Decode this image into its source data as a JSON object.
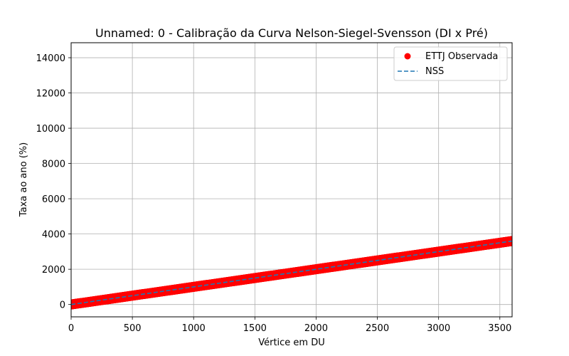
{
  "chart_data": {
    "type": "scatter",
    "title": "Unnamed: 0 - Calibração da Curva Nelson-Siegel-Svensson (DI x Pré)",
    "xlabel": "Vértice em DU",
    "ylabel": "Taxa ao ano (%)",
    "xlim": [
      0,
      3600
    ],
    "ylim": [
      -700,
      14850
    ],
    "x_ticks": [
      0,
      500,
      1000,
      1500,
      2000,
      2500,
      3000,
      3500
    ],
    "y_ticks": [
      0,
      2000,
      4000,
      6000,
      8000,
      10000,
      12000,
      14000
    ],
    "grid": true,
    "legend_position": "top-right",
    "series": [
      {
        "name": "ETTJ Observada",
        "kind": "scatter",
        "color": "#ff0000",
        "x_range": [
          0,
          3600
        ],
        "y_range": [
          0,
          3600
        ],
        "description_points": [
          [
            0,
            0
          ],
          [
            500,
            500
          ],
          [
            1000,
            1000
          ],
          [
            1500,
            1500
          ],
          [
            2000,
            2000
          ],
          [
            2500,
            2500
          ],
          [
            3000,
            3000
          ],
          [
            3600,
            3600
          ]
        ]
      },
      {
        "name": "NSS",
        "kind": "line",
        "style": "dashed",
        "color": "#1f77b4",
        "x": [
          0,
          500,
          1000,
          1500,
          2000,
          2500,
          3000,
          3600
        ],
        "y": [
          0,
          500,
          1000,
          1500,
          2000,
          2500,
          3000,
          3600
        ]
      }
    ]
  }
}
